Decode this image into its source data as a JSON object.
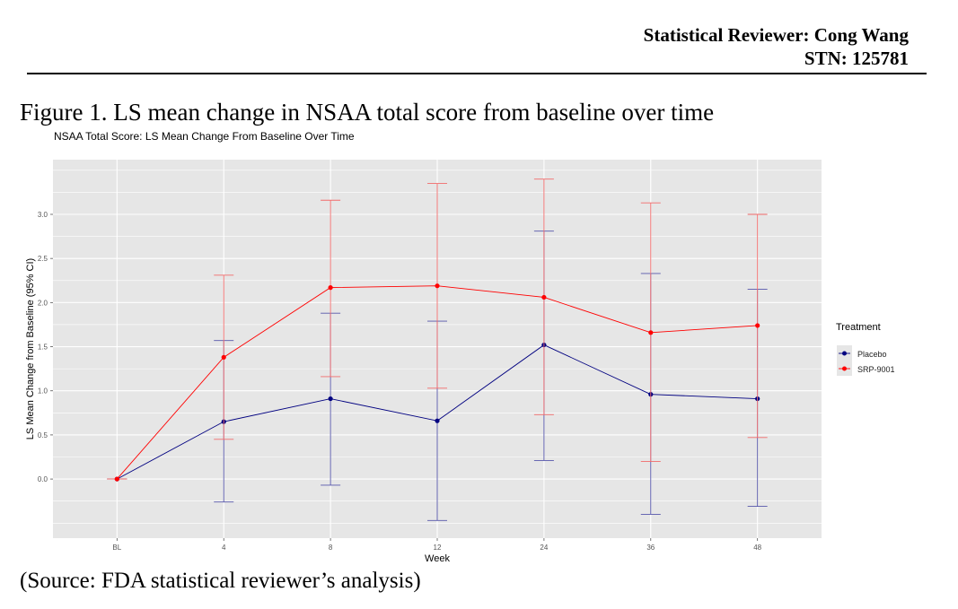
{
  "header": {
    "reviewer": "Statistical Reviewer: Cong Wang",
    "stn": "STN: 125781"
  },
  "figure_caption": "Figure 1. LS mean change in NSAA total score from baseline over time",
  "source_note": "(Source: FDA statistical reviewer’s analysis)",
  "chart_data": {
    "type": "line",
    "title": "NSAA Total Score: LS Mean Change From Baseline Over Time",
    "xlabel": "Week",
    "ylabel": "LS Mean Change from Baseline (95% CI)",
    "categories": [
      "BL",
      "4",
      "8",
      "12",
      "24",
      "36",
      "48"
    ],
    "y_ticks": [
      "0.0",
      "0.5",
      "1.0",
      "1.5",
      "2.0",
      "2.5",
      "3.0"
    ],
    "ylim": [
      -0.67,
      3.62
    ],
    "grid": true,
    "legend_title": "Treatment",
    "legend_position": "right",
    "series": [
      {
        "name": "Placebo",
        "color": "#000080",
        "errorbar_color": "#5555aa",
        "values": [
          0,
          0.65,
          0.91,
          0.66,
          1.52,
          0.96,
          0.91
        ],
        "lower": [
          0,
          -0.26,
          -0.07,
          -0.47,
          0.21,
          -0.4,
          -0.31
        ],
        "upper": [
          0,
          1.57,
          1.88,
          1.79,
          2.81,
          2.33,
          2.15
        ]
      },
      {
        "name": "SRP-9001",
        "color": "#ff0000",
        "errorbar_color": "#f26b6b",
        "values": [
          0,
          1.38,
          2.17,
          2.19,
          2.06,
          1.66,
          1.74
        ],
        "lower": [
          0,
          0.45,
          1.16,
          1.03,
          0.73,
          0.2,
          0.47
        ],
        "upper": [
          0,
          2.31,
          3.16,
          3.35,
          3.4,
          3.13,
          3.0
        ]
      }
    ]
  }
}
